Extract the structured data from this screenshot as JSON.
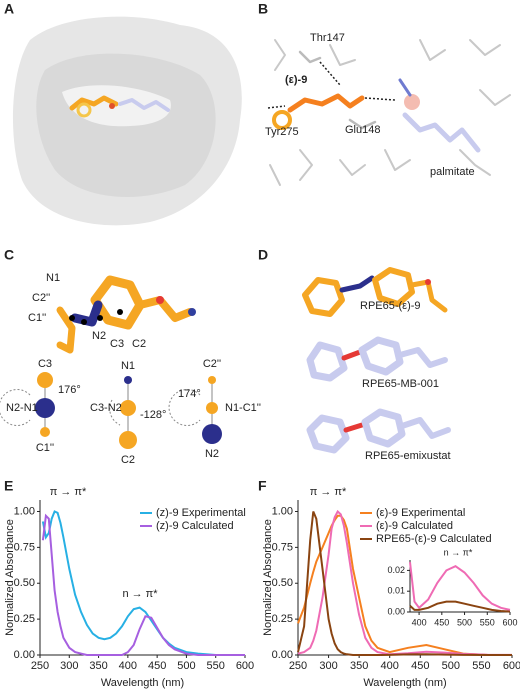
{
  "panel_letters": [
    "A",
    "B",
    "C",
    "D",
    "E",
    "F"
  ],
  "panel_b": {
    "labels": [
      "Thr147",
      "(ε)-9",
      "Tyr275",
      "Glu148",
      "palmitate"
    ]
  },
  "panel_c": {
    "labels": [
      "N1",
      "C2''",
      "C1''",
      "N2",
      "C3",
      "C2"
    ],
    "projections": [
      {
        "top": "C3",
        "center": "N2-N1",
        "bottom": "C1''",
        "angle": "176°"
      },
      {
        "top": "N1",
        "center": "C3-N2",
        "bottom": "C2",
        "angle": "-128°"
      },
      {
        "top": "C2''",
        "center": "N1-C1''",
        "bottom": "N2",
        "angle": "174°"
      }
    ]
  },
  "panel_d": {
    "labels": [
      "RPE65-(ε)-9",
      "RPE65-MB-001",
      "RPE65-emixustat"
    ]
  },
  "chart_data": [
    {
      "type": "line",
      "x_label": "Wavelength (nm)",
      "y_label": "Normalized Absorbance",
      "annotations": [
        "π → π*",
        "n → π*"
      ],
      "x": [
        250,
        255,
        260,
        265,
        270,
        275,
        280,
        285,
        290,
        300,
        310,
        320,
        330,
        340,
        350,
        360,
        370,
        380,
        390,
        400,
        410,
        420,
        430,
        440,
        450,
        460,
        470,
        480,
        500,
        520,
        550,
        600
      ],
      "series": [
        {
          "name": "(z)-9 Experimental",
          "color": "#27b0e4",
          "values": [
            null,
            0.93,
            0.82,
            0.85,
            0.95,
            1.0,
            0.99,
            0.92,
            0.82,
            0.6,
            0.42,
            0.3,
            0.21,
            0.15,
            0.12,
            0.11,
            0.12,
            0.15,
            0.2,
            0.27,
            0.32,
            0.33,
            0.3,
            0.24,
            0.18,
            0.12,
            0.08,
            0.05,
            0.02,
            0.01,
            0,
            0
          ]
        },
        {
          "name": "(z)-9 Calculated",
          "color": "#a65fe0",
          "values": [
            null,
            0.8,
            0.97,
            0.95,
            0.7,
            0.45,
            0.3,
            0.2,
            0.12,
            0.05,
            0.02,
            0.01,
            0,
            0,
            0,
            0,
            0,
            0,
            0,
            0.02,
            0.07,
            0.18,
            0.27,
            0.26,
            0.19,
            0.12,
            0.07,
            0.04,
            0.01,
            0,
            0,
            0
          ]
        }
      ],
      "xlim": [
        250,
        600
      ],
      "xticks": [
        250,
        300,
        350,
        400,
        450,
        500,
        550,
        600
      ],
      "ylim": [
        0,
        1.08
      ],
      "yticks": [
        {
          "value": 0,
          "label": "0.00"
        },
        {
          "value": 0.25,
          "label": "0.25"
        },
        {
          "value": 0.5,
          "label": "0.50"
        },
        {
          "value": 0.75,
          "label": "0.75"
        },
        {
          "value": 1,
          "label": "1.00"
        }
      ]
    },
    {
      "type": "line",
      "x_label": "Wavelength (nm)",
      "y_label": "Normalized Absorbance",
      "annotations": [
        "π → π*"
      ],
      "x": [
        250,
        260,
        270,
        275,
        280,
        290,
        300,
        305,
        310,
        315,
        320,
        325,
        330,
        340,
        350,
        360,
        370,
        380,
        400,
        430,
        460,
        490,
        520,
        560,
        600
      ],
      "series": [
        {
          "name": "(ε)-9 Experimental",
          "color": "#f5801f",
          "values": [
            0.22,
            0.33,
            0.5,
            0.58,
            0.65,
            0.75,
            0.85,
            0.9,
            0.94,
            0.97,
            0.97,
            0.94,
            0.88,
            0.6,
            0.4,
            0.2,
            0.1,
            0.05,
            0.02,
            0.05,
            0.07,
            0.04,
            0.01,
            0,
            0
          ]
        },
        {
          "name": "(ε)-9 Calculated",
          "color": "#ef6bb4",
          "values": [
            0.01,
            0.02,
            0.05,
            0.1,
            0.17,
            0.4,
            0.7,
            0.88,
            0.96,
            1.0,
            0.98,
            0.9,
            0.78,
            0.5,
            0.28,
            0.12,
            0.05,
            0.02,
            0.005,
            0.012,
            0.022,
            0.017,
            0.008,
            0.002,
            0.001
          ]
        },
        {
          "name": "RPE65-(ε)-9 Calculated",
          "color": "#8a4411",
          "values": [
            0.02,
            0.2,
            0.8,
            1.0,
            0.95,
            0.6,
            0.25,
            0.15,
            0.08,
            0.04,
            0.02,
            0.01,
            0.005,
            0,
            0,
            0,
            0,
            0,
            0.001,
            0.004,
            0.005,
            0.003,
            0.001,
            0,
            0
          ]
        }
      ],
      "xlim": [
        250,
        600
      ],
      "xticks": [
        250,
        300,
        350,
        400,
        450,
        500,
        550,
        600
      ],
      "ylim": [
        0,
        1.08
      ],
      "yticks": [
        {
          "value": 0,
          "label": "0.00"
        },
        {
          "value": 0.25,
          "label": "0.25"
        },
        {
          "value": 0.5,
          "label": "0.50"
        },
        {
          "value": 0.75,
          "label": "0.75"
        },
        {
          "value": 1,
          "label": "1.00"
        }
      ],
      "inset": {
        "type": "line",
        "annotations": [
          "n → π*"
        ],
        "x": [
          380,
          390,
          400,
          420,
          440,
          460,
          480,
          500,
          520,
          540,
          560,
          580,
          600
        ],
        "series": [
          {
            "color": "#ef6bb4",
            "values": [
              0.024,
              0.005,
              0.002,
              0.006,
              0.014,
              0.02,
              0.022,
              0.019,
              0.014,
              0.008,
              0.004,
              0.002,
              0.001
            ]
          },
          {
            "color": "#8a4411",
            "values": [
              0.003,
              0.001,
              0.001,
              0.002,
              0.004,
              0.005,
              0.005,
              0.004,
              0.003,
              0.002,
              0.001,
              0.0005,
              0.0002
            ]
          }
        ],
        "xlim": [
          380,
          600
        ],
        "xticks": [
          400,
          450,
          500,
          550,
          600
        ],
        "ylim": [
          0,
          0.025
        ],
        "yticks": [
          {
            "value": 0,
            "label": "0.00"
          },
          {
            "value": 0.01,
            "label": "0.01"
          },
          {
            "value": 0.02,
            "label": "0.02"
          }
        ]
      }
    }
  ]
}
